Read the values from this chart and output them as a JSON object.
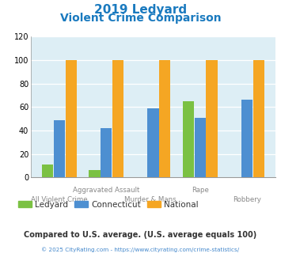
{
  "title_line1": "2019 Ledyard",
  "title_line2": "Violent Crime Comparison",
  "title_color": "#1a7abf",
  "categories": [
    "All Violent Crime",
    "Aggravated Assault",
    "Murder & Mans...",
    "Rape",
    "Robbery"
  ],
  "ledyard": [
    11,
    6,
    0,
    65,
    0
  ],
  "connecticut": [
    49,
    42,
    59,
    51,
    66
  ],
  "national": [
    100,
    100,
    100,
    100,
    100
  ],
  "colors": {
    "ledyard": "#7bc143",
    "connecticut": "#4d8fd1",
    "national": "#f5a623"
  },
  "ylim": [
    0,
    120
  ],
  "yticks": [
    0,
    20,
    40,
    60,
    80,
    100,
    120
  ],
  "plot_bg": "#ddeef5",
  "footer_text": "Compared to U.S. average. (U.S. average equals 100)",
  "footer_color": "#333333",
  "credit_text": "© 2025 CityRating.com - https://www.cityrating.com/crime-statistics/",
  "credit_color": "#4488cc",
  "x_top": [
    "",
    "Aggravated Assault",
    "",
    "Rape",
    ""
  ],
  "x_bottom": [
    "All Violent Crime",
    "",
    "Murder & Mans...",
    "",
    "Robbery"
  ]
}
